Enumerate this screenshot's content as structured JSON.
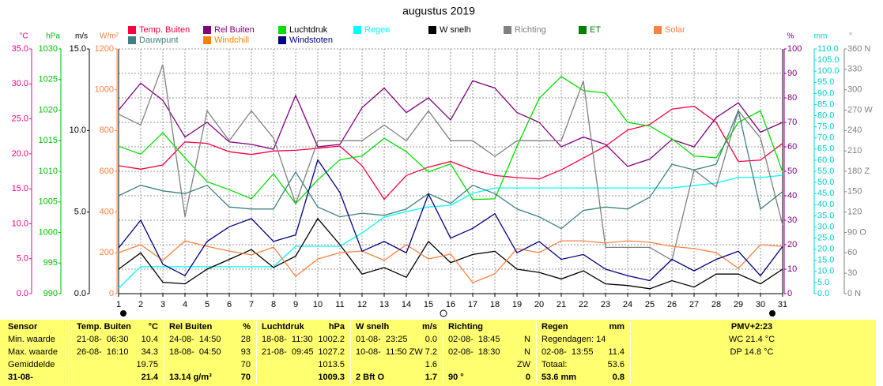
{
  "chart_data": {
    "type": "line",
    "title": "augustus 2019",
    "x": [
      1,
      2,
      3,
      4,
      5,
      6,
      7,
      8,
      9,
      10,
      11,
      12,
      13,
      14,
      15,
      16,
      17,
      18,
      19,
      20,
      21,
      22,
      23,
      24,
      25,
      26,
      27,
      28,
      29,
      30,
      31
    ],
    "xlim": [
      1,
      31
    ],
    "grid": true,
    "axes": [
      {
        "unit": "°C",
        "side": "left",
        "color": "#ff0080",
        "lim": [
          0,
          35
        ],
        "ticks": [
          {
            "value": 0,
            "label": "0.0"
          },
          {
            "value": 5,
            "label": "5.0"
          },
          {
            "value": 10,
            "label": "10.0"
          },
          {
            "value": 15,
            "label": "15.0"
          },
          {
            "value": 20,
            "label": "20.0"
          },
          {
            "value": 25,
            "label": "25.0"
          },
          {
            "value": 30,
            "label": "30.0"
          },
          {
            "value": 35,
            "label": "35.0"
          }
        ]
      },
      {
        "unit": "hPa",
        "side": "left",
        "color": "#00c000",
        "lim": [
          990,
          1030
        ],
        "ticks": [
          990,
          995,
          1000,
          1005,
          1010,
          1015,
          1020,
          1025,
          1030
        ]
      },
      {
        "unit": "m/s",
        "side": "left",
        "color": "#000000",
        "lim": [
          0,
          15
        ],
        "ticks": [
          {
            "value": 0,
            "label": "0.0"
          },
          {
            "value": 5,
            "label": "5.0"
          },
          {
            "value": 10,
            "label": "10.0"
          },
          {
            "value": 15,
            "label": "15.0"
          }
        ]
      },
      {
        "unit": "W/m²",
        "side": "left",
        "color": "#ff8040",
        "lim": [
          0,
          1200
        ],
        "ticks": [
          0,
          200,
          400,
          600,
          800,
          1000,
          1200
        ]
      },
      {
        "unit": "%",
        "side": "right",
        "color": "#800080",
        "lim": [
          0,
          100
        ],
        "ticks": [
          0,
          10,
          20,
          30,
          40,
          50,
          60,
          70,
          80,
          90,
          100
        ]
      },
      {
        "unit": "mm",
        "side": "right",
        "color": "#00d0d0",
        "lim": [
          0,
          110
        ],
        "ticks": [
          {
            "value": 0,
            "label": "0.0"
          },
          {
            "value": 5,
            "label": "5.0"
          },
          {
            "value": 10,
            "label": "10.0"
          },
          {
            "value": 15,
            "label": "15.0"
          },
          {
            "value": 20,
            "label": "20.0"
          },
          {
            "value": 25,
            "label": "25.0"
          },
          {
            "value": 30,
            "label": "30.0"
          },
          {
            "value": 35,
            "label": "35.0"
          },
          {
            "value": 40,
            "label": "40.0"
          },
          {
            "value": 45,
            "label": "45.0"
          },
          {
            "value": 50,
            "label": "50.0"
          },
          {
            "value": 55,
            "label": "55.0"
          },
          {
            "value": 60,
            "label": "60.0"
          },
          {
            "value": 65,
            "label": "65.0"
          },
          {
            "value": 70,
            "label": "70.0"
          },
          {
            "value": 75,
            "label": "75.0"
          },
          {
            "value": 80,
            "label": "80.0"
          },
          {
            "value": 85,
            "label": "85.0"
          },
          {
            "value": 90,
            "label": "90.0"
          },
          {
            "value": 95,
            "label": "95.0"
          },
          {
            "value": 100,
            "label": "100.0"
          },
          {
            "value": 105,
            "label": "105.0"
          },
          {
            "value": 110,
            "label": "110.0"
          }
        ]
      },
      {
        "unit": "°",
        "side": "right",
        "color": "#808080",
        "lim": [
          0,
          360
        ],
        "ticks": [
          {
            "value": 0,
            "label": "0 N"
          },
          30,
          60,
          {
            "value": 90,
            "label": "90 O"
          },
          120,
          150,
          {
            "value": 180,
            "label": "180 Z"
          },
          210,
          240,
          {
            "value": 270,
            "label": "270 W"
          },
          300,
          330,
          {
            "value": 360,
            "label": "360 N"
          }
        ]
      }
    ],
    "series": [
      {
        "name": "Temp. Buiten",
        "color": "#ff0040",
        "axis": 0,
        "values": [
          18.3,
          17.8,
          18.4,
          21.7,
          21.5,
          20.3,
          19.9,
          20.4,
          20.5,
          20.8,
          21.1,
          18.3,
          13.5,
          16.9,
          18.1,
          18.9,
          17.7,
          16.9,
          16.6,
          16.4,
          17.7,
          19.4,
          21.1,
          23.4,
          24.2,
          26.4,
          26.8,
          24.5,
          18.9,
          19.1,
          21.5
        ]
      },
      {
        "name": "Rel Buiten",
        "color": "#800080",
        "axis": 4,
        "values": [
          75,
          86,
          79,
          64,
          70,
          62,
          61,
          59,
          81,
          60,
          61,
          76,
          84,
          74,
          80,
          71,
          87,
          84,
          74,
          70,
          60,
          64,
          61,
          52,
          55,
          63,
          60,
          72,
          78,
          66,
          70
        ]
      },
      {
        "name": "Luchtdruk",
        "color": "#00e000",
        "axis": 1,
        "values": [
          1014.1,
          1012.8,
          1016.3,
          1012.2,
          1008.3,
          1007.0,
          1005.5,
          1009.6,
          1004.7,
          1008.6,
          1011.9,
          1012.5,
          1015.4,
          1013.2,
          1009.9,
          1011.2,
          1005.4,
          1005.5,
          1014.1,
          1021.9,
          1025.5,
          1023.2,
          1022.8,
          1018.0,
          1017.4,
          1015.3,
          1012.5,
          1012.2,
          1018.0,
          1019.9,
          1009.9
        ]
      },
      {
        "name": "Regen",
        "color": "#00ffff",
        "axis": 5,
        "values": [
          2.5,
          12.1,
          12.1,
          12.1,
          12.1,
          12.1,
          12.1,
          12.1,
          21.3,
          21.3,
          21.3,
          27.3,
          34.4,
          36.9,
          39.0,
          39.7,
          45.1,
          47.5,
          47.5,
          47.5,
          47.5,
          47.5,
          47.5,
          47.5,
          47.5,
          47.5,
          48.6,
          49.7,
          52.2,
          52.2,
          53.2
        ]
      },
      {
        "name": "W snelh",
        "color": "#000000",
        "axis": 2,
        "values": [
          1.5,
          2.5,
          0.7,
          0.6,
          1.5,
          2.1,
          2.7,
          1.6,
          2.3,
          4.6,
          3.0,
          1.2,
          1.6,
          1.0,
          3.2,
          1.9,
          2.4,
          2.6,
          1.5,
          1.3,
          0.9,
          1.4,
          0.6,
          0.5,
          0.3,
          0.8,
          0.4,
          1.2,
          1.2,
          0.6,
          1.5
        ]
      },
      {
        "name": "Richting",
        "color": "#808080",
        "axis": 6,
        "values": [
          264,
          248,
          337,
          113,
          269,
          225,
          269,
          229,
          132,
          225,
          225,
          225,
          248,
          225,
          269,
          225,
          225,
          202,
          225,
          225,
          225,
          313,
          68,
          68,
          68,
          49,
          182,
          157,
          269,
          229,
          101
        ]
      },
      {
        "name": "ET",
        "color": "#008000"
      },
      {
        "name": "Solar",
        "color": "#ff8040",
        "axis": 3,
        "values": [
          201,
          240,
          163,
          259,
          232,
          209,
          190,
          228,
          85,
          170,
          201,
          209,
          163,
          240,
          170,
          194,
          54,
          97,
          221,
          201,
          259,
          259,
          248,
          259,
          252,
          232,
          221,
          201,
          124,
          240,
          232
        ]
      },
      {
        "name": "Dauwpunt",
        "color": "#408080",
        "axis": 0,
        "values": [
          14.0,
          15.5,
          14.7,
          14.3,
          15.5,
          12.4,
          12.1,
          12.1,
          17.4,
          12.4,
          11.0,
          11.5,
          11.2,
          12.1,
          14.3,
          12.9,
          15.5,
          14.3,
          12.1,
          11.0,
          9.3,
          11.9,
          12.4,
          12.1,
          13.8,
          18.5,
          17.7,
          18.5,
          26.2,
          12.1,
          14.6
        ]
      },
      {
        "name": "Windchill",
        "color": "#ff8000"
      },
      {
        "name": "Windstoten",
        "color": "#000080",
        "axis": 2,
        "values": [
          2.8,
          4.5,
          1.8,
          1.1,
          3.2,
          4.1,
          4.6,
          3.2,
          3.6,
          8.2,
          6.2,
          2.6,
          3.2,
          2.5,
          6.1,
          3.4,
          4.0,
          4.9,
          2.5,
          3.2,
          2.1,
          2.4,
          1.5,
          1.1,
          0.8,
          2.1,
          1.4,
          2.1,
          2.6,
          1.1,
          2.9
        ]
      }
    ]
  },
  "table": {
    "rows": [
      [
        {
          "l": "Sensor"
        },
        {
          "l": "Temp. Buiten",
          "r": "°C"
        },
        {
          "l": "Rel Buiten",
          "r": "%"
        },
        {
          "l": "Luchtdruk",
          "r": "hPa"
        },
        {
          "l": "W snelh",
          "r": "m/s"
        },
        {
          "l": "Richting"
        },
        {
          "l": "Regen",
          "r": "mm"
        },
        {
          "c": "PMV+2:23"
        }
      ],
      [
        {
          "l": "Min. waarde"
        },
        {
          "l": "21-08-  06:30",
          "r": "10.4"
        },
        {
          "l": "24-08-  14:50",
          "r": "28"
        },
        {
          "l": "18-08-  11:30",
          "r": "1002.2"
        },
        {
          "l": "01-08-  23:25",
          "r": "0.0"
        },
        {
          "l": "02-08-  18:45",
          "r": "N"
        },
        {
          "l": "Regendagen: 14"
        },
        {
          "c": "WC 21.4 °C"
        }
      ],
      [
        {
          "l": "Max. waarde"
        },
        {
          "l": "26-08-  16:10",
          "r": "34.3"
        },
        {
          "l": "18-08-  04:50",
          "r": "93"
        },
        {
          "l": "21-08-  09:45",
          "r": "1027.2"
        },
        {
          "l": "10-08-  11:50 ZW",
          "r": "7.2"
        },
        {
          "l": "02-08-  18:30",
          "r": "N"
        },
        {
          "l": "02-08-  13:55",
          "r": "11.4"
        },
        {
          "c": "DP 14.8 °C"
        }
      ],
      [
        {
          "l": "Gemiddelde"
        },
        {
          "r": "19.75"
        },
        {
          "r": "70"
        },
        {
          "r": "1013.5"
        },
        {
          "r": "1.6"
        },
        {
          "r": "ZW"
        },
        {
          "l": "Totaal:",
          "r": "53.6"
        },
        {}
      ],
      [
        {
          "l": "31-08-"
        },
        {
          "r": "21.4"
        },
        {
          "l": "13.14 g/m³",
          "r": "70"
        },
        {
          "r": "1009.3"
        },
        {
          "l": "2 Bft O",
          "r": "1.7"
        },
        {
          "l": "90 °",
          "r": "0"
        },
        {
          "l": "53.6 mm",
          "r": "0.8"
        },
        {}
      ]
    ]
  }
}
